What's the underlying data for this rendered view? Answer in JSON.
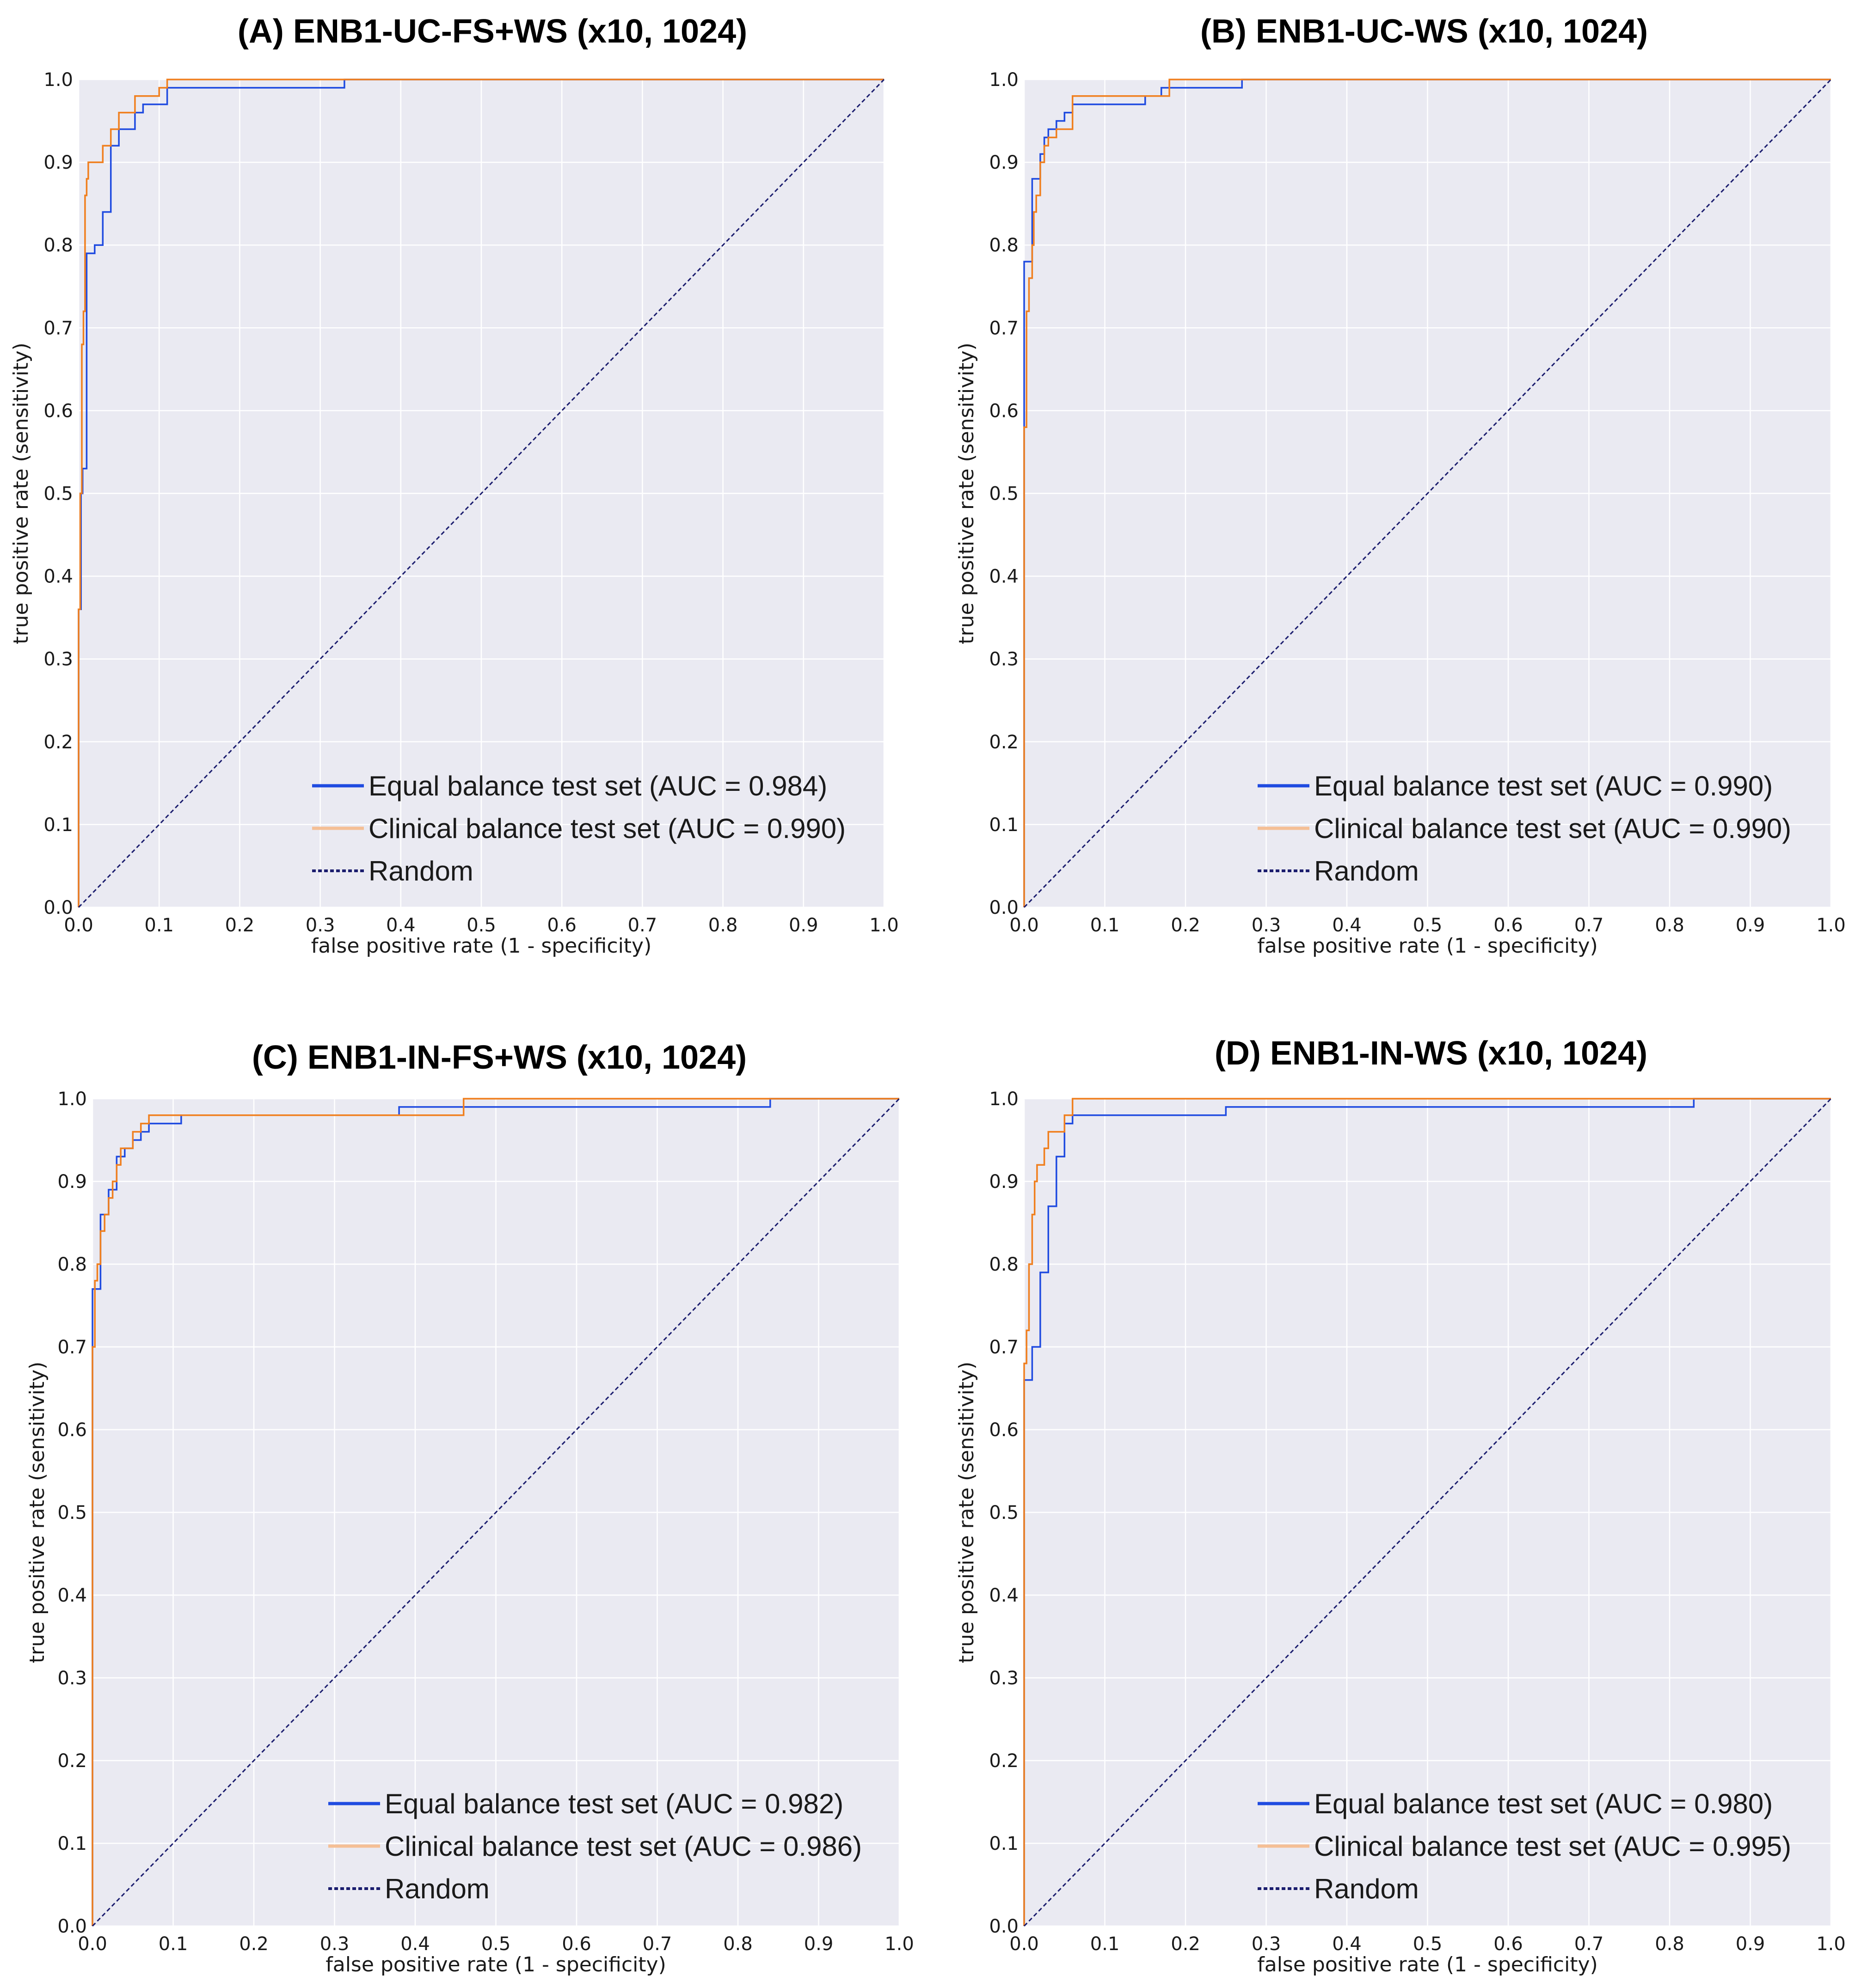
{
  "colors": {
    "panel_bg": "#eaeaf2",
    "grid": "#ffffff",
    "equal": "#1f4be0",
    "clinical": "#f07f1e",
    "clinical_legend": "#f5bf95",
    "random": "#1b1d6e"
  },
  "chart_data": [
    {
      "type": "line",
      "title": "(A) ENB1-UC-FS+WS (x10, 1024)",
      "xlabel": "false positive rate (1 - specificity)",
      "ylabel": "true positive rate (sensitivity)",
      "xlim": [
        0,
        1
      ],
      "ylim": [
        0,
        1
      ],
      "xticks": [
        "0.0",
        "0.1",
        "0.2",
        "0.3",
        "0.4",
        "0.5",
        "0.6",
        "0.7",
        "0.8",
        "0.9",
        "1.0"
      ],
      "yticks": [
        "0.0",
        "0.1",
        "0.2",
        "0.3",
        "0.4",
        "0.5",
        "0.6",
        "0.7",
        "0.8",
        "0.9",
        "1.0"
      ],
      "grid": true,
      "legend_position": "lower-right",
      "series": [
        {
          "name": "Equal balance test set (AUC = 0.984)",
          "key": "equal",
          "points": [
            [
              0,
              0
            ],
            [
              0,
              0.36
            ],
            [
              0.003,
              0.36
            ],
            [
              0.003,
              0.5
            ],
            [
              0.005,
              0.5
            ],
            [
              0.005,
              0.53
            ],
            [
              0.01,
              0.53
            ],
            [
              0.01,
              0.74
            ],
            [
              0.01,
              0.79
            ],
            [
              0.02,
              0.79
            ],
            [
              0.02,
              0.8
            ],
            [
              0.03,
              0.8
            ],
            [
              0.03,
              0.84
            ],
            [
              0.04,
              0.84
            ],
            [
              0.04,
              0.92
            ],
            [
              0.05,
              0.92
            ],
            [
              0.05,
              0.94
            ],
            [
              0.07,
              0.94
            ],
            [
              0.07,
              0.96
            ],
            [
              0.08,
              0.96
            ],
            [
              0.08,
              0.97
            ],
            [
              0.11,
              0.97
            ],
            [
              0.11,
              0.99
            ],
            [
              0.33,
              0.99
            ],
            [
              0.33,
              1.0
            ],
            [
              1.0,
              1.0
            ]
          ]
        },
        {
          "name": "Clinical balance test set (AUC = 0.990)",
          "key": "clinical",
          "points": [
            [
              0,
              0
            ],
            [
              0,
              0.36
            ],
            [
              0.002,
              0.36
            ],
            [
              0.002,
              0.5
            ],
            [
              0.004,
              0.5
            ],
            [
              0.004,
              0.68
            ],
            [
              0.006,
              0.68
            ],
            [
              0.006,
              0.72
            ],
            [
              0.008,
              0.72
            ],
            [
              0.008,
              0.86
            ],
            [
              0.01,
              0.86
            ],
            [
              0.01,
              0.88
            ],
            [
              0.012,
              0.88
            ],
            [
              0.012,
              0.9
            ],
            [
              0.03,
              0.9
            ],
            [
              0.03,
              0.92
            ],
            [
              0.04,
              0.92
            ],
            [
              0.04,
              0.94
            ],
            [
              0.05,
              0.94
            ],
            [
              0.05,
              0.96
            ],
            [
              0.07,
              0.96
            ],
            [
              0.07,
              0.98
            ],
            [
              0.1,
              0.98
            ],
            [
              0.1,
              0.99
            ],
            [
              0.11,
              0.99
            ],
            [
              0.11,
              1.0
            ],
            [
              1.0,
              1.0
            ]
          ]
        },
        {
          "name": "Random",
          "key": "random",
          "points": [
            [
              0,
              0
            ],
            [
              1,
              1
            ]
          ]
        }
      ]
    },
    {
      "type": "line",
      "title": "(B) ENB1-UC-WS (x10, 1024)",
      "xlabel": "false positive rate (1 - specificity)",
      "ylabel": "true positive rate (sensitivity)",
      "xlim": [
        0,
        1
      ],
      "ylim": [
        0,
        1
      ],
      "xticks": [
        "0.0",
        "0.1",
        "0.2",
        "0.3",
        "0.4",
        "0.5",
        "0.6",
        "0.7",
        "0.8",
        "0.9",
        "1.0"
      ],
      "yticks": [
        "0.0",
        "0.1",
        "0.2",
        "0.3",
        "0.4",
        "0.5",
        "0.6",
        "0.7",
        "0.8",
        "0.9",
        "1.0"
      ],
      "grid": true,
      "legend_position": "lower-right",
      "series": [
        {
          "name": "Equal balance test set (AUC = 0.990)",
          "key": "equal",
          "points": [
            [
              0,
              0
            ],
            [
              0,
              0.78
            ],
            [
              0.01,
              0.78
            ],
            [
              0.01,
              0.88
            ],
            [
              0.02,
              0.88
            ],
            [
              0.02,
              0.91
            ],
            [
              0.025,
              0.91
            ],
            [
              0.025,
              0.93
            ],
            [
              0.03,
              0.93
            ],
            [
              0.03,
              0.94
            ],
            [
              0.04,
              0.94
            ],
            [
              0.04,
              0.95
            ],
            [
              0.05,
              0.95
            ],
            [
              0.05,
              0.96
            ],
            [
              0.06,
              0.96
            ],
            [
              0.06,
              0.97
            ],
            [
              0.15,
              0.97
            ],
            [
              0.15,
              0.98
            ],
            [
              0.17,
              0.98
            ],
            [
              0.17,
              0.99
            ],
            [
              0.27,
              0.99
            ],
            [
              0.27,
              1.0
            ],
            [
              1.0,
              1.0
            ]
          ]
        },
        {
          "name": "Clinical balance test set (AUC = 0.990)",
          "key": "clinical",
          "points": [
            [
              0,
              0
            ],
            [
              0,
              0.58
            ],
            [
              0.003,
              0.58
            ],
            [
              0.003,
              0.72
            ],
            [
              0.006,
              0.72
            ],
            [
              0.006,
              0.76
            ],
            [
              0.01,
              0.76
            ],
            [
              0.01,
              0.8
            ],
            [
              0.012,
              0.8
            ],
            [
              0.012,
              0.84
            ],
            [
              0.015,
              0.84
            ],
            [
              0.015,
              0.86
            ],
            [
              0.02,
              0.86
            ],
            [
              0.02,
              0.9
            ],
            [
              0.025,
              0.9
            ],
            [
              0.025,
              0.92
            ],
            [
              0.03,
              0.92
            ],
            [
              0.03,
              0.93
            ],
            [
              0.04,
              0.93
            ],
            [
              0.04,
              0.94
            ],
            [
              0.06,
              0.94
            ],
            [
              0.06,
              0.98
            ],
            [
              0.18,
              0.98
            ],
            [
              0.18,
              1.0
            ],
            [
              1.0,
              1.0
            ]
          ]
        },
        {
          "name": "Random",
          "key": "random",
          "points": [
            [
              0,
              0
            ],
            [
              1,
              1
            ]
          ]
        }
      ]
    },
    {
      "type": "line",
      "title": "(C) ENB1-IN-FS+WS (x10, 1024)",
      "xlabel": "false positive rate (1 - specificity)",
      "ylabel": "true positive rate (sensitivity)",
      "xlim": [
        0,
        1
      ],
      "ylim": [
        0,
        1
      ],
      "xticks": [
        "0.0",
        "0.1",
        "0.2",
        "0.3",
        "0.4",
        "0.5",
        "0.6",
        "0.7",
        "0.8",
        "0.9",
        "1.0"
      ],
      "yticks": [
        "0.0",
        "0.1",
        "0.2",
        "0.3",
        "0.4",
        "0.5",
        "0.6",
        "0.7",
        "0.8",
        "0.9",
        "1.0"
      ],
      "grid": true,
      "legend_position": "lower-right",
      "series": [
        {
          "name": "Equal balance test set (AUC = 0.982)",
          "key": "equal",
          "points": [
            [
              0,
              0
            ],
            [
              0,
              0.77
            ],
            [
              0.01,
              0.77
            ],
            [
              0.01,
              0.86
            ],
            [
              0.02,
              0.86
            ],
            [
              0.02,
              0.89
            ],
            [
              0.03,
              0.89
            ],
            [
              0.03,
              0.93
            ],
            [
              0.04,
              0.93
            ],
            [
              0.04,
              0.94
            ],
            [
              0.05,
              0.94
            ],
            [
              0.05,
              0.95
            ],
            [
              0.06,
              0.95
            ],
            [
              0.06,
              0.96
            ],
            [
              0.07,
              0.96
            ],
            [
              0.07,
              0.97
            ],
            [
              0.11,
              0.97
            ],
            [
              0.11,
              0.98
            ],
            [
              0.38,
              0.98
            ],
            [
              0.38,
              0.99
            ],
            [
              0.84,
              0.99
            ],
            [
              0.84,
              1.0
            ],
            [
              1.0,
              1.0
            ]
          ]
        },
        {
          "name": "Clinical balance test set (AUC = 0.986)",
          "key": "clinical",
          "points": [
            [
              0,
              0
            ],
            [
              0,
              0.7
            ],
            [
              0.003,
              0.7
            ],
            [
              0.003,
              0.78
            ],
            [
              0.006,
              0.78
            ],
            [
              0.006,
              0.8
            ],
            [
              0.01,
              0.8
            ],
            [
              0.01,
              0.84
            ],
            [
              0.015,
              0.84
            ],
            [
              0.015,
              0.86
            ],
            [
              0.02,
              0.86
            ],
            [
              0.02,
              0.88
            ],
            [
              0.025,
              0.88
            ],
            [
              0.025,
              0.9
            ],
            [
              0.03,
              0.9
            ],
            [
              0.03,
              0.92
            ],
            [
              0.035,
              0.92
            ],
            [
              0.035,
              0.94
            ],
            [
              0.05,
              0.94
            ],
            [
              0.05,
              0.96
            ],
            [
              0.06,
              0.96
            ],
            [
              0.06,
              0.97
            ],
            [
              0.07,
              0.97
            ],
            [
              0.07,
              0.98
            ],
            [
              0.46,
              0.98
            ],
            [
              0.46,
              1.0
            ],
            [
              1.0,
              1.0
            ]
          ]
        },
        {
          "name": "Random",
          "key": "random",
          "points": [
            [
              0,
              0
            ],
            [
              1,
              1
            ]
          ]
        }
      ]
    },
    {
      "type": "line",
      "title": "(D) ENB1-IN-WS (x10, 1024)",
      "xlabel": "false positive rate (1 - specificity)",
      "ylabel": "true positive rate (sensitivity)",
      "xlim": [
        0,
        1
      ],
      "ylim": [
        0,
        1
      ],
      "xticks": [
        "0.0",
        "0.1",
        "0.2",
        "0.3",
        "0.4",
        "0.5",
        "0.6",
        "0.7",
        "0.8",
        "0.9",
        "1.0"
      ],
      "yticks": [
        "0.0",
        "0.1",
        "0.2",
        "0.3",
        "0.4",
        "0.5",
        "0.6",
        "0.7",
        "0.8",
        "0.9",
        "1.0"
      ],
      "grid": true,
      "legend_position": "lower-right",
      "series": [
        {
          "name": "Equal balance test set (AUC = 0.980)",
          "key": "equal",
          "points": [
            [
              0,
              0
            ],
            [
              0,
              0.66
            ],
            [
              0.01,
              0.66
            ],
            [
              0.01,
              0.7
            ],
            [
              0.02,
              0.7
            ],
            [
              0.02,
              0.79
            ],
            [
              0.03,
              0.79
            ],
            [
              0.03,
              0.87
            ],
            [
              0.04,
              0.87
            ],
            [
              0.04,
              0.93
            ],
            [
              0.05,
              0.93
            ],
            [
              0.05,
              0.97
            ],
            [
              0.06,
              0.97
            ],
            [
              0.06,
              0.98
            ],
            [
              0.25,
              0.98
            ],
            [
              0.25,
              0.99
            ],
            [
              0.83,
              0.99
            ],
            [
              0.83,
              1.0
            ],
            [
              1.0,
              1.0
            ]
          ]
        },
        {
          "name": "Clinical balance test set (AUC = 0.995)",
          "key": "clinical",
          "points": [
            [
              0,
              0
            ],
            [
              0,
              0.68
            ],
            [
              0.003,
              0.68
            ],
            [
              0.003,
              0.72
            ],
            [
              0.006,
              0.72
            ],
            [
              0.006,
              0.8
            ],
            [
              0.01,
              0.8
            ],
            [
              0.01,
              0.86
            ],
            [
              0.013,
              0.86
            ],
            [
              0.013,
              0.9
            ],
            [
              0.016,
              0.9
            ],
            [
              0.016,
              0.92
            ],
            [
              0.025,
              0.92
            ],
            [
              0.025,
              0.94
            ],
            [
              0.03,
              0.94
            ],
            [
              0.03,
              0.96
            ],
            [
              0.05,
              0.96
            ],
            [
              0.05,
              0.98
            ],
            [
              0.06,
              0.98
            ],
            [
              0.06,
              1.0
            ],
            [
              1.0,
              1.0
            ]
          ]
        },
        {
          "name": "Random",
          "key": "random",
          "points": [
            [
              0,
              0
            ],
            [
              1,
              1
            ]
          ]
        }
      ]
    }
  ]
}
